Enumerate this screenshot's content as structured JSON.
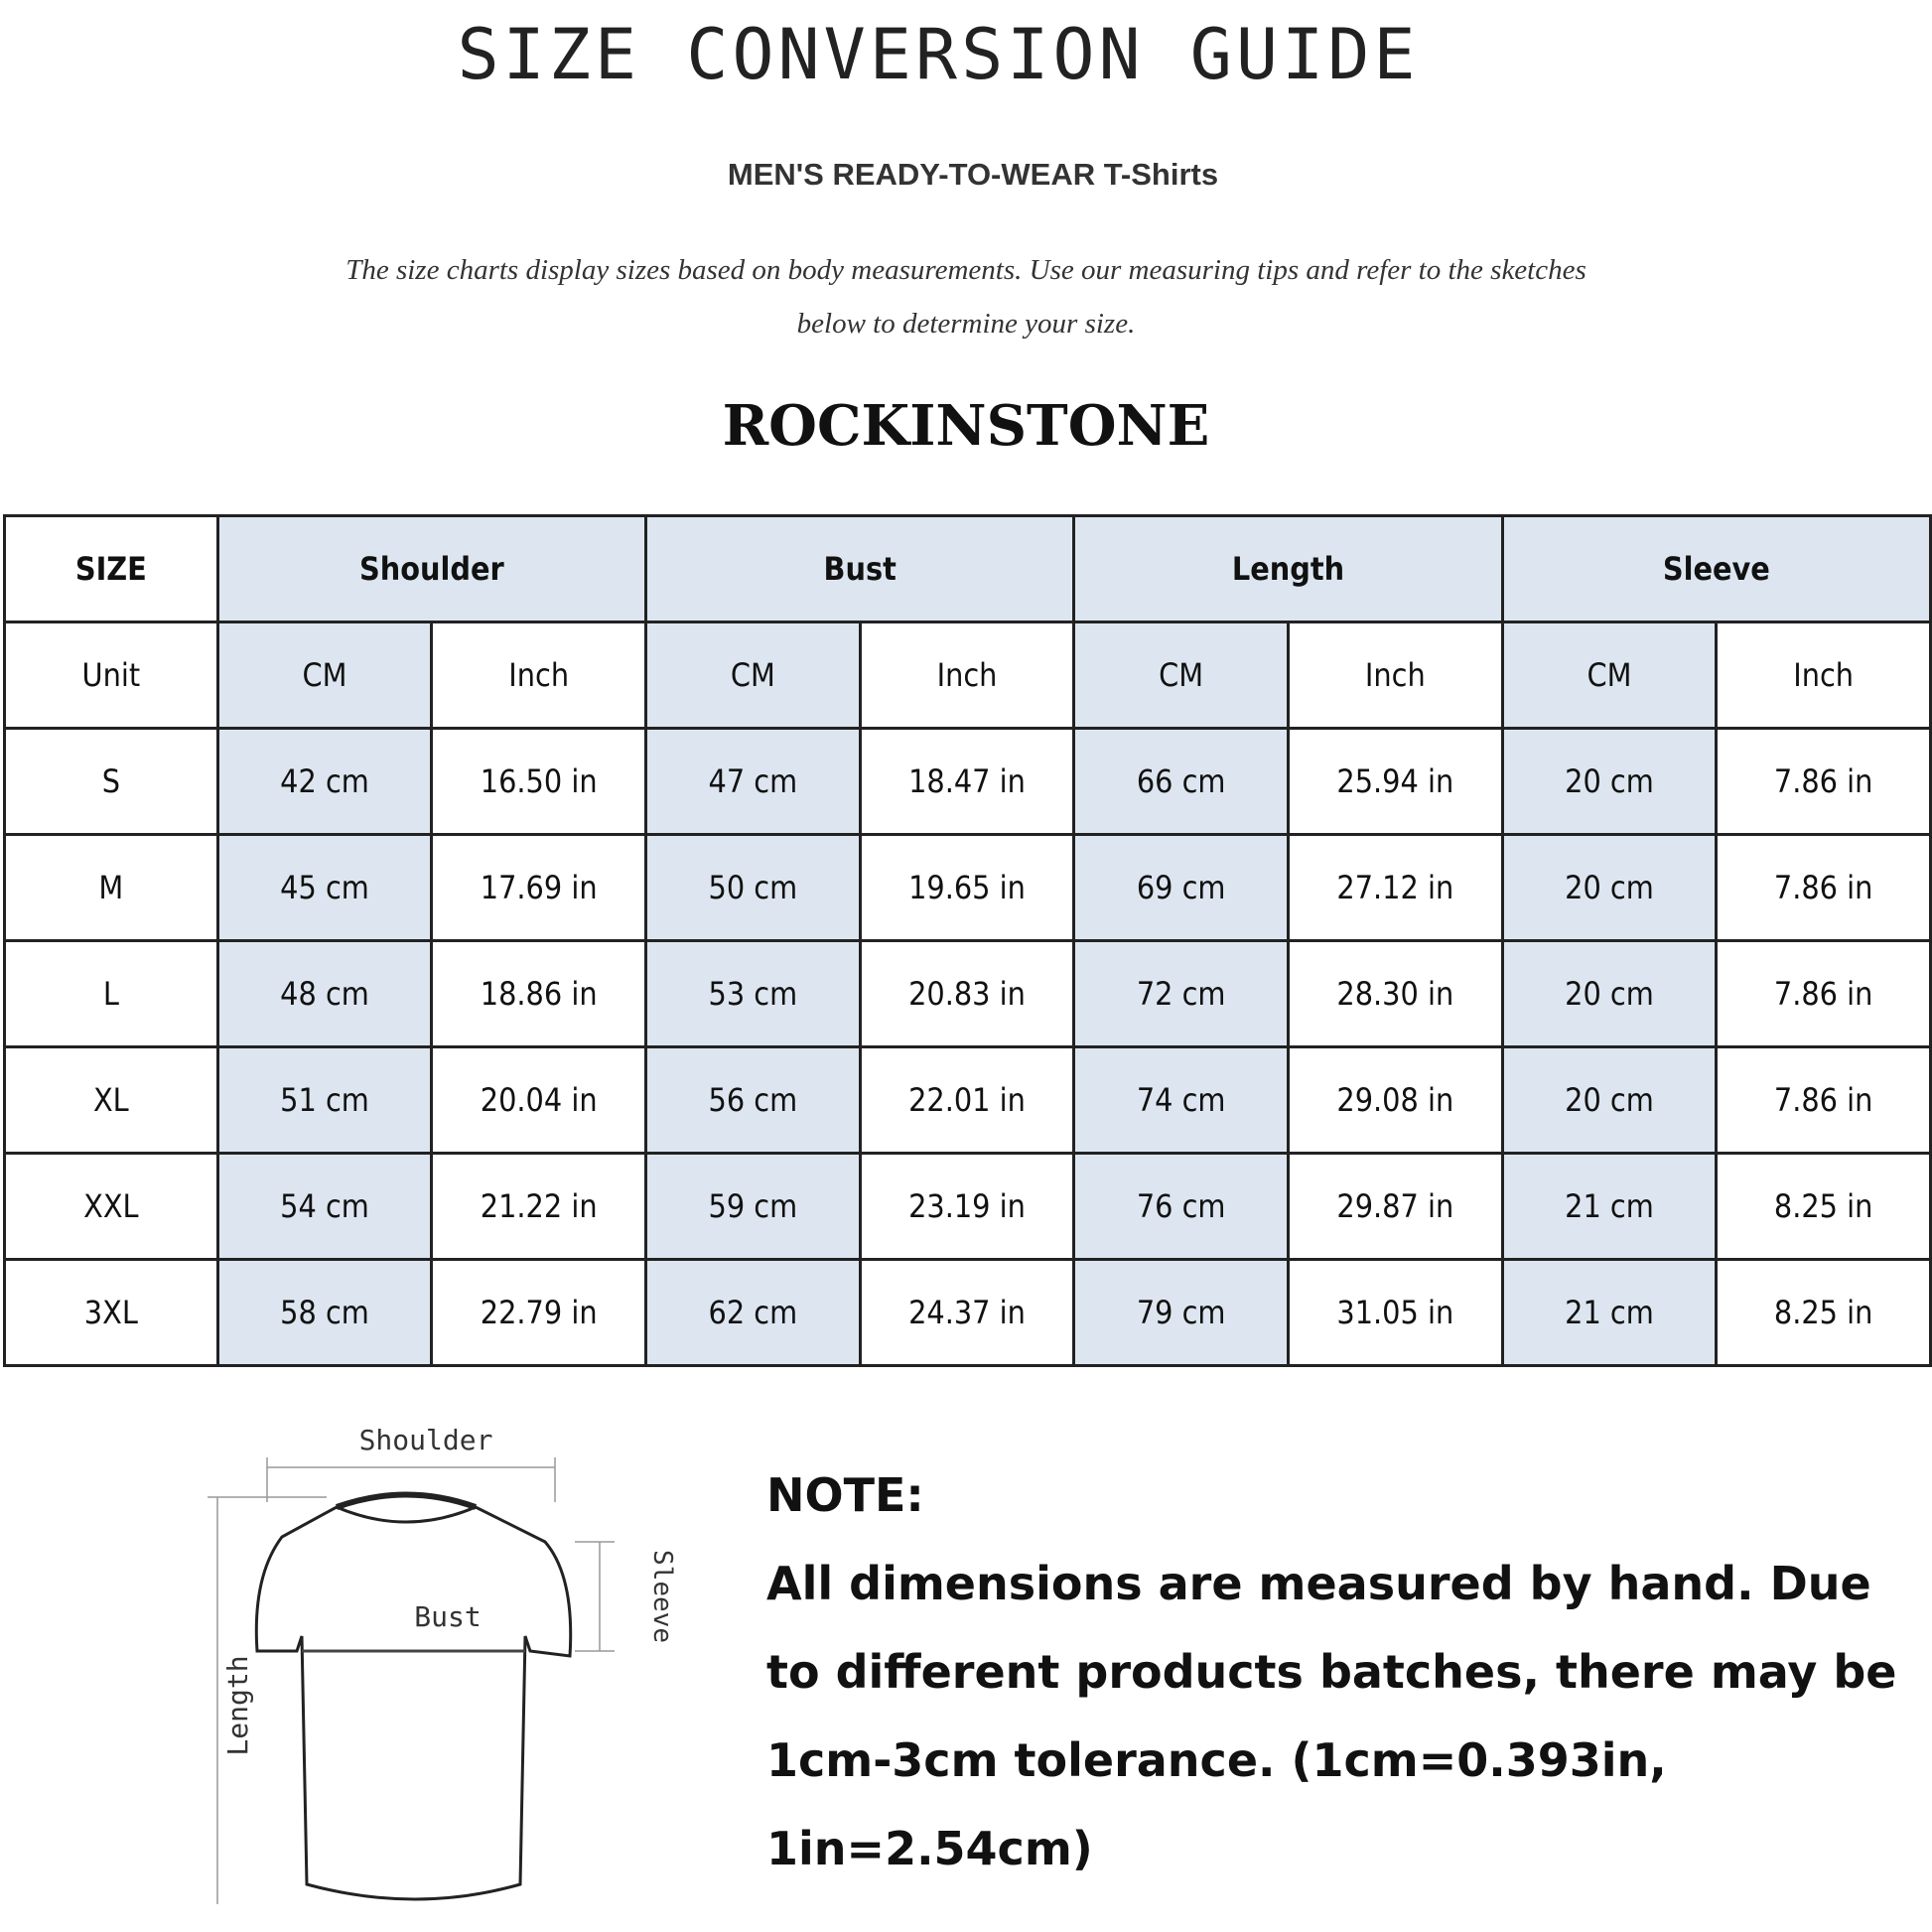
{
  "header": {
    "title": "SIZE CONVERSION GUIDE",
    "subtitle": "MEN'S READY-TO-WEAR T-Shirts",
    "intro_line1": "The size charts display sizes based on body measurements. Use our measuring tips and refer to the sketches",
    "intro_line2": "below to determine your size.",
    "watermark": "ROCKINSTONE",
    "brand": "ROCKINSTONE"
  },
  "table": {
    "size_label": "SIZE",
    "unit_label": "Unit",
    "groups": [
      "Shoulder",
      "Bust",
      "Length",
      "Sleeve"
    ],
    "units": [
      "CM",
      "Inch",
      "CM",
      "Inch",
      "CM",
      "Inch",
      "CM",
      "Inch"
    ],
    "rows": [
      {
        "size": "S",
        "cells": [
          "42 cm",
          "16.50 in",
          "47 cm",
          "18.47  in",
          "66 cm",
          "25.94  in",
          "20 cm",
          "7.86  in"
        ]
      },
      {
        "size": "M",
        "cells": [
          "45 cm",
          "17.69  in",
          "50 cm",
          "19.65  in",
          "69 cm",
          "27.12  in",
          "20 cm",
          "7.86  in"
        ]
      },
      {
        "size": "L",
        "cells": [
          "48 cm",
          "18.86  in",
          "53 cm",
          "20.83  in",
          "72 cm",
          "28.30  in",
          "20 cm",
          "7.86  in"
        ]
      },
      {
        "size": "XL",
        "cells": [
          "51 cm",
          "20.04  in",
          "56 cm",
          "22.01  in",
          "74 cm",
          "29.08  in",
          "20 cm",
          "7.86  in"
        ]
      },
      {
        "size": "XXL",
        "cells": [
          "54 cm",
          "21.22  in",
          "59 cm",
          "23.19  in",
          "76 cm",
          "29.87  in",
          "21 cm",
          "8.25  in"
        ]
      },
      {
        "size": "3XL",
        "cells": [
          "58 cm",
          "22.79  in",
          "62 cm",
          "24.37  in",
          "79 cm",
          "31.05  in",
          "21 cm",
          "8.25  in"
        ]
      }
    ],
    "colors": {
      "shaded": "#dde6f0",
      "border": "#222222"
    }
  },
  "diagram": {
    "shoulder": "Shoulder",
    "bust": "Bust",
    "length": "Length",
    "sleeve": "Sleeve"
  },
  "note": {
    "heading": "NOTE:",
    "text": "All dimensions are measured by hand. Due to different products batches, there may be 1cm-3cm tolerance. (1cm=0.393in, 1in=2.54cm)"
  }
}
